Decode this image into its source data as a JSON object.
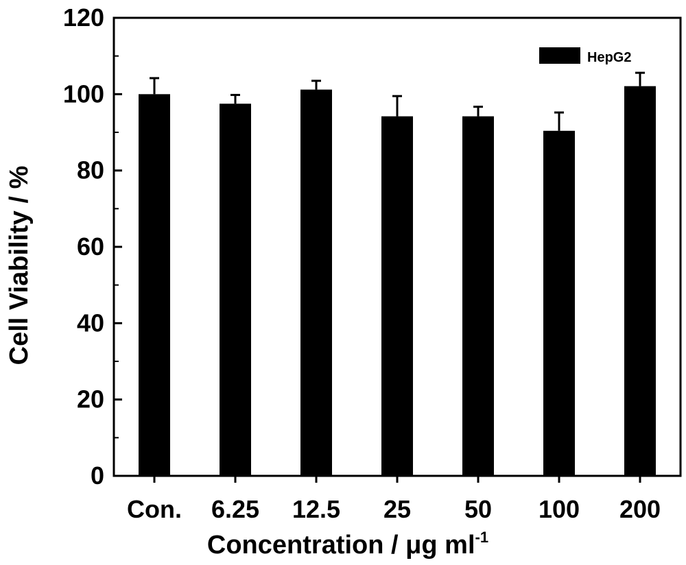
{
  "chart_data": {
    "type": "bar",
    "categories": [
      "Con.",
      "6.25",
      "12.5",
      "25",
      "50",
      "100",
      "200"
    ],
    "series": [
      {
        "name": "HepG2",
        "values": [
          100.0,
          97.5,
          101.2,
          94.2,
          94.2,
          90.4,
          102.1
        ],
        "errors": [
          4.2,
          2.3,
          2.3,
          5.3,
          2.5,
          4.8,
          3.5
        ]
      }
    ],
    "xlabel": "Concentration / μg ml",
    "xlabel_superscript": "-1",
    "ylabel": "Cell Viability / %",
    "ylim": [
      0,
      120
    ],
    "yticks": [
      "0",
      "20",
      "40",
      "60",
      "80",
      "100",
      "120"
    ],
    "grid": false,
    "legend_position": "top-right",
    "colors": {
      "bar": "#000000",
      "axis": "#000000",
      "background": "#ffffff"
    }
  }
}
